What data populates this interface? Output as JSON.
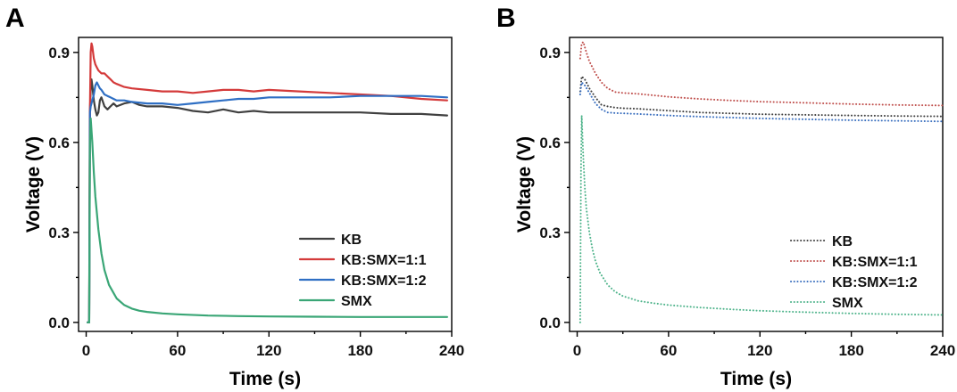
{
  "chart_data": [
    {
      "panel": "A",
      "type": "line",
      "xlabel": "Time (s)",
      "ylabel": "Voltage (V)",
      "xlim": [
        -5,
        240
      ],
      "ylim": [
        -0.03,
        0.95
      ],
      "xticks": [
        0,
        60,
        120,
        180,
        240
      ],
      "yticks": [
        0.0,
        0.3,
        0.6,
        0.9
      ],
      "xtick_labels": [
        "0",
        "60",
        "120",
        "180",
        "240"
      ],
      "ytick_labels": [
        "0.0",
        "0.3",
        "0.6",
        "0.9"
      ],
      "line_style": "solid",
      "legend_position": "lower-right",
      "grid": false,
      "series": [
        {
          "name": "KB",
          "color": "#404040",
          "x": [
            1,
            2,
            2.4,
            3,
            3.5,
            4,
            5,
            6,
            7,
            8,
            9,
            10,
            12,
            14,
            16,
            18,
            20,
            25,
            30,
            35,
            40,
            50,
            60,
            70,
            80,
            90,
            100,
            110,
            120,
            140,
            160,
            180,
            200,
            220,
            237
          ],
          "y": [
            0.0,
            0.0,
            0.69,
            0.78,
            0.81,
            0.79,
            0.74,
            0.71,
            0.69,
            0.7,
            0.74,
            0.75,
            0.72,
            0.71,
            0.72,
            0.73,
            0.72,
            0.73,
            0.735,
            0.725,
            0.72,
            0.72,
            0.715,
            0.705,
            0.7,
            0.71,
            0.7,
            0.705,
            0.7,
            0.7,
            0.7,
            0.7,
            0.695,
            0.695,
            0.69
          ]
        },
        {
          "name": "KB:SMX=1:1",
          "color": "#d43a3a",
          "x": [
            1,
            2,
            2.5,
            3,
            3.5,
            4,
            5,
            6,
            7,
            8,
            10,
            12,
            14,
            16,
            18,
            20,
            25,
            30,
            40,
            50,
            60,
            70,
            80,
            90,
            100,
            110,
            120,
            140,
            160,
            180,
            200,
            220,
            237
          ],
          "y": [
            0.0,
            0.0,
            0.72,
            0.9,
            0.93,
            0.92,
            0.88,
            0.86,
            0.85,
            0.84,
            0.83,
            0.83,
            0.82,
            0.81,
            0.8,
            0.795,
            0.785,
            0.78,
            0.775,
            0.77,
            0.77,
            0.765,
            0.77,
            0.775,
            0.775,
            0.77,
            0.775,
            0.77,
            0.765,
            0.76,
            0.755,
            0.745,
            0.74
          ]
        },
        {
          "name": "KB:SMX=1:2",
          "color": "#2f6fc4",
          "x": [
            1,
            2,
            2.5,
            3,
            4,
            5,
            6,
            7,
            8,
            9,
            10,
            12,
            14,
            16,
            18,
            20,
            25,
            30,
            40,
            50,
            60,
            70,
            80,
            90,
            100,
            110,
            120,
            140,
            160,
            180,
            200,
            220,
            237
          ],
          "y": [
            0.0,
            0.0,
            0.7,
            0.72,
            0.74,
            0.76,
            0.79,
            0.8,
            0.79,
            0.78,
            0.775,
            0.76,
            0.755,
            0.75,
            0.745,
            0.74,
            0.74,
            0.735,
            0.73,
            0.73,
            0.725,
            0.73,
            0.735,
            0.74,
            0.745,
            0.745,
            0.75,
            0.75,
            0.75,
            0.755,
            0.755,
            0.755,
            0.75
          ]
        },
        {
          "name": "SMX",
          "color": "#3aa676",
          "x": [
            1,
            2,
            2.5,
            3,
            4,
            5,
            6,
            8,
            10,
            12,
            15,
            20,
            25,
            30,
            35,
            40,
            50,
            60,
            80,
            100,
            120,
            150,
            180,
            210,
            237
          ],
          "y": [
            0.0,
            0.0,
            0.6,
            0.68,
            0.6,
            0.5,
            0.42,
            0.31,
            0.23,
            0.175,
            0.125,
            0.08,
            0.058,
            0.046,
            0.039,
            0.035,
            0.03,
            0.027,
            0.023,
            0.021,
            0.02,
            0.019,
            0.018,
            0.018,
            0.018
          ]
        }
      ]
    },
    {
      "panel": "B",
      "type": "line",
      "xlabel": "Time (s)",
      "ylabel": "Voltage (V)",
      "xlim": [
        -5,
        240
      ],
      "ylim": [
        -0.03,
        0.95
      ],
      "xticks": [
        0,
        60,
        120,
        180,
        240
      ],
      "yticks": [
        0.0,
        0.3,
        0.6,
        0.9
      ],
      "xtick_labels": [
        "0",
        "60",
        "120",
        "180",
        "240"
      ],
      "ytick_labels": [
        "0.0",
        "0.3",
        "0.6",
        "0.9"
      ],
      "line_style": "dotted",
      "legend_position": "lower-right",
      "grid": false,
      "series": [
        {
          "name": "KB",
          "color": "#404040",
          "x": [
            2,
            3,
            5,
            8,
            12,
            16,
            20,
            25,
            30,
            40,
            60,
            80,
            100,
            120,
            150,
            180,
            210,
            240
          ],
          "y": [
            0.77,
            0.82,
            0.81,
            0.78,
            0.75,
            0.725,
            0.72,
            0.716,
            0.714,
            0.712,
            0.706,
            0.7,
            0.697,
            0.694,
            0.692,
            0.69,
            0.688,
            0.687
          ]
        },
        {
          "name": "KB:SMX=1:1",
          "color": "#c0504d",
          "x": [
            2,
            3,
            4,
            6,
            8,
            12,
            16,
            20,
            25,
            30,
            40,
            60,
            80,
            100,
            120,
            150,
            180,
            210,
            240
          ],
          "y": [
            0.88,
            0.93,
            0.935,
            0.9,
            0.87,
            0.83,
            0.8,
            0.78,
            0.768,
            0.765,
            0.762,
            0.752,
            0.745,
            0.74,
            0.736,
            0.732,
            0.728,
            0.725,
            0.723
          ]
        },
        {
          "name": "KB:SMX=1:2",
          "color": "#3a6fbf",
          "x": [
            2,
            3,
            5,
            8,
            12,
            16,
            20,
            25,
            30,
            40,
            60,
            80,
            100,
            120,
            150,
            180,
            210,
            240
          ],
          "y": [
            0.76,
            0.8,
            0.79,
            0.765,
            0.73,
            0.71,
            0.7,
            0.698,
            0.697,
            0.695,
            0.69,
            0.686,
            0.683,
            0.68,
            0.677,
            0.674,
            0.672,
            0.67
          ]
        },
        {
          "name": "SMX",
          "color": "#4db38a",
          "x": [
            2,
            2.5,
            3,
            4,
            5,
            6,
            8,
            10,
            12,
            15,
            20,
            25,
            30,
            40,
            50,
            60,
            80,
            100,
            120,
            150,
            180,
            210,
            240
          ],
          "y": [
            0.0,
            0.5,
            0.69,
            0.55,
            0.45,
            0.38,
            0.3,
            0.245,
            0.205,
            0.165,
            0.125,
            0.102,
            0.088,
            0.072,
            0.064,
            0.058,
            0.05,
            0.044,
            0.039,
            0.034,
            0.03,
            0.027,
            0.025
          ]
        }
      ]
    }
  ]
}
